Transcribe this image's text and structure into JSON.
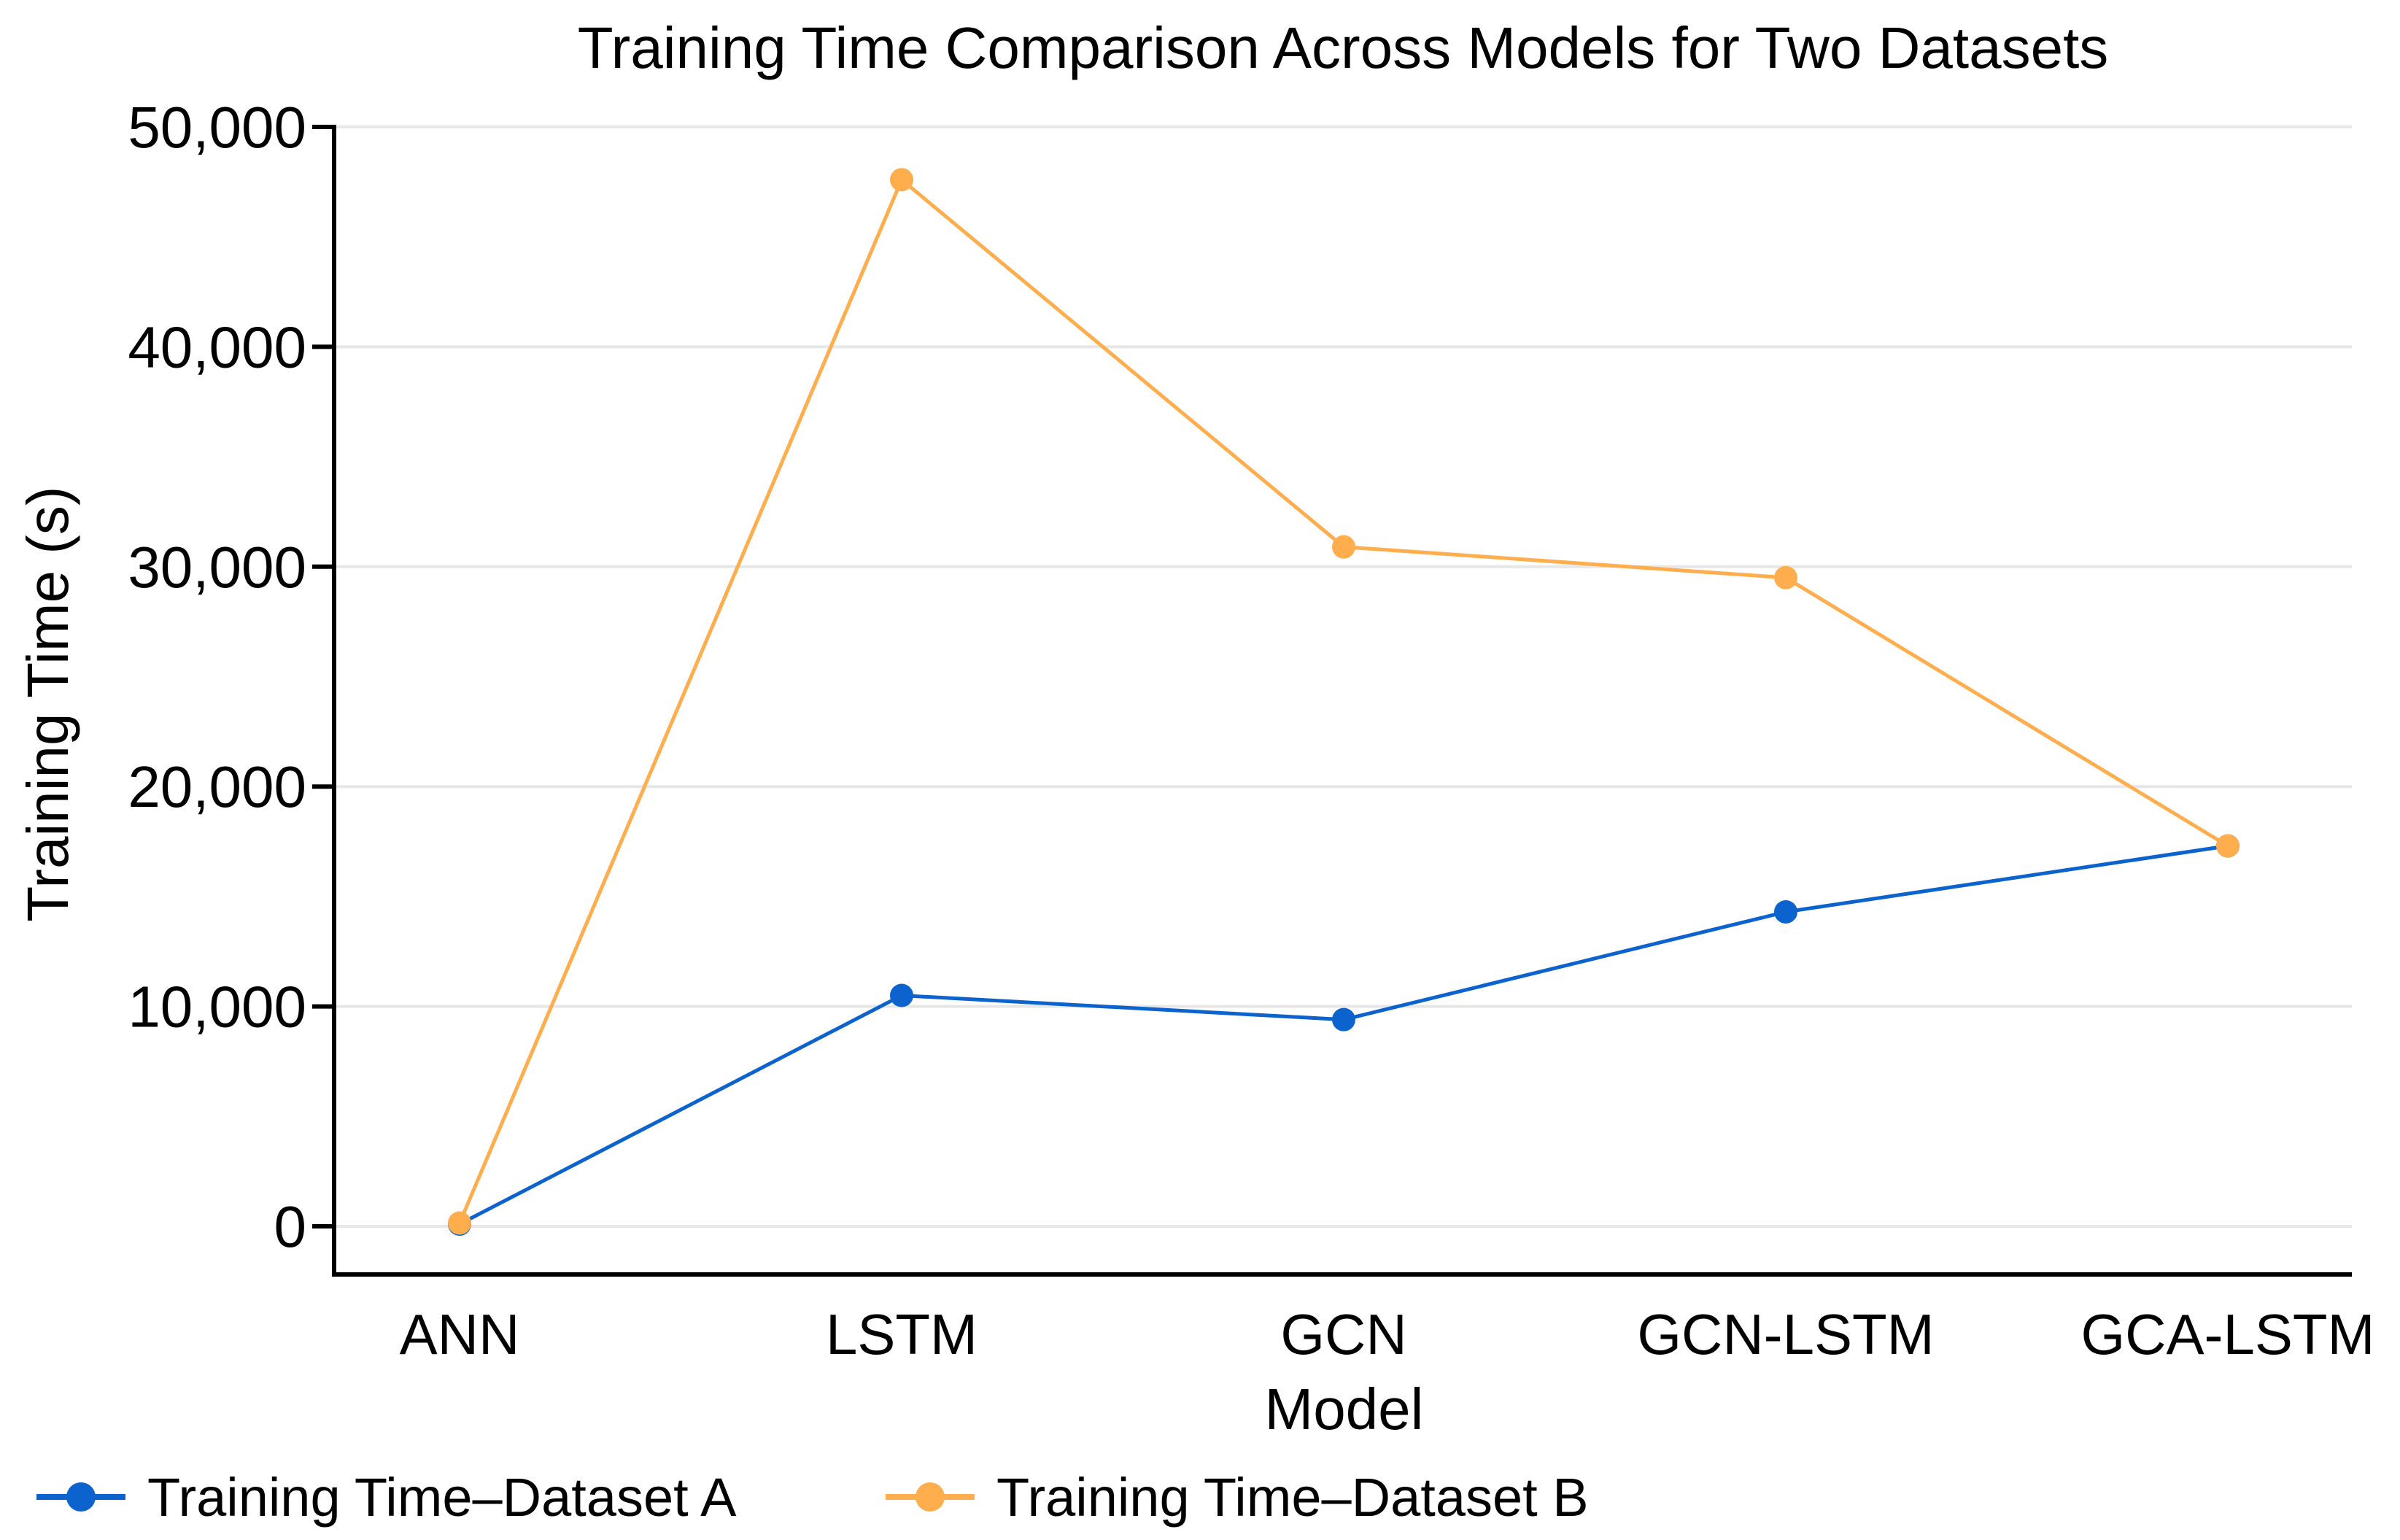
{
  "chart_data": {
    "type": "line",
    "title": "Training Time Comparison Across Models for Two Datasets",
    "xlabel": "Model",
    "ylabel": "Training Time (s)",
    "categories": [
      "ANN",
      "LSTM",
      "GCN",
      "GCN-LSTM",
      "GCA-LSTM"
    ],
    "series": [
      {
        "name": "Training Time–Dataset A",
        "color": "#0d63ce",
        "values": [
          100,
          10500,
          9400,
          14300,
          17300
        ]
      },
      {
        "name": "Training Time–Dataset B",
        "color": "#ffad4d",
        "values": [
          150,
          47600,
          30900,
          29500,
          17300
        ]
      }
    ],
    "ylim": [
      0,
      50000
    ],
    "ytick_values": [
      0,
      10000,
      20000,
      30000,
      40000,
      50000
    ],
    "ytick_labels": [
      "0",
      "10,000",
      "20,000",
      "30,000",
      "40,000",
      "50,000"
    ],
    "grid": "horizontal",
    "legend_position": "bottom-left",
    "axis_color": "#000000",
    "gridline_color": "#e7e7e7",
    "text_color": "#000000",
    "background": "#ffffff"
  }
}
